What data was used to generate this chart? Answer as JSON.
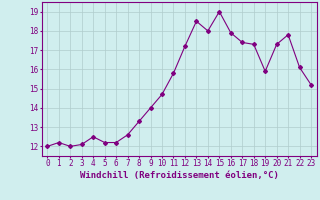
{
  "x": [
    0,
    1,
    2,
    3,
    4,
    5,
    6,
    7,
    8,
    9,
    10,
    11,
    12,
    13,
    14,
    15,
    16,
    17,
    18,
    19,
    20,
    21,
    22,
    23
  ],
  "y": [
    12.0,
    12.2,
    12.0,
    12.1,
    12.5,
    12.2,
    12.2,
    12.6,
    13.3,
    14.0,
    14.7,
    15.8,
    17.2,
    18.5,
    18.0,
    19.0,
    17.9,
    17.4,
    17.3,
    15.9,
    17.3,
    17.8,
    16.1,
    15.2
  ],
  "line_color": "#800080",
  "marker": "D",
  "marker_size": 2,
  "bg_color": "#d0eeee",
  "grid_color": "#b0cccc",
  "xlabel": "Windchill (Refroidissement éolien,°C)",
  "ylim": [
    11.5,
    19.5
  ],
  "xlim": [
    -0.5,
    23.5
  ],
  "yticks": [
    12,
    13,
    14,
    15,
    16,
    17,
    18,
    19
  ],
  "xticks": [
    0,
    1,
    2,
    3,
    4,
    5,
    6,
    7,
    8,
    9,
    10,
    11,
    12,
    13,
    14,
    15,
    16,
    17,
    18,
    19,
    20,
    21,
    22,
    23
  ],
  "label_color": "#800080",
  "tick_fontsize": 5.5,
  "xlabel_fontsize": 6.5
}
